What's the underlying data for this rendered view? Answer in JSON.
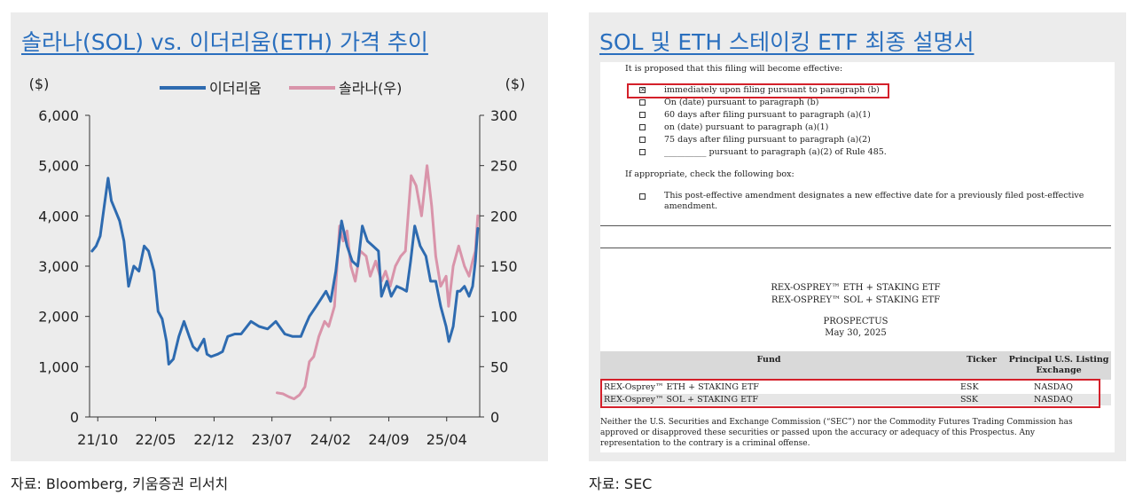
{
  "left": {
    "title": "솔라나(SOL) vs. 이더리움(ETH) 가격 추이",
    "source": "자료: Bloomberg, 키움증권 리서치"
  },
  "right": {
    "title": "SOL 및 ETH 스테이킹 ETF 최종 설명서",
    "source": "자료: SEC",
    "doc": {
      "intro": "It is proposed that this filing will become effective:",
      "options": [
        {
          "checked": true,
          "text": "immediately upon filing pursuant to paragraph (b)"
        },
        {
          "checked": false,
          "text": "On (date) pursuant to paragraph (b)"
        },
        {
          "checked": false,
          "text": "60 days after filing pursuant to paragraph (a)(1)"
        },
        {
          "checked": false,
          "text": "on (date) pursuant to paragraph (a)(1)"
        },
        {
          "checked": false,
          "text": "75 days after filing pursuant to paragraph (a)(2)"
        },
        {
          "checked": false,
          "text": "__________ pursuant to paragraph (a)(2) of Rule 485."
        }
      ],
      "appropriate": "If appropriate, check the following box:",
      "amendment_line1": "This post-effective amendment designates a new effective date for a previously filed post-effective",
      "amendment_line2": "amendment.",
      "fund_name1": "REX-OSPREY™ ETH + STAKING ETF",
      "fund_name2": "REX-OSPREY™ SOL + STAKING ETF",
      "prospectus": "PROSPECTUS",
      "date": "May 30, 2025",
      "table_headers": {
        "fund": "Fund",
        "ticker": "Ticker",
        "exchange_line1": "Principal U.S. Listing",
        "exchange_line2": "Exchange"
      },
      "table_rows": [
        {
          "fund": "REX-Osprey™ ETH + STAKING ETF",
          "ticker": "ESK",
          "exchange": "NASDAQ"
        },
        {
          "fund": "REX-Osprey™ SOL + STAKING ETF",
          "ticker": "SSK",
          "exchange": "NASDAQ"
        }
      ],
      "disclaimer_line1": "Neither the U.S. Securities and Exchange Commission (“SEC”) nor the Commodity Futures Trading Commission has",
      "disclaimer_line2": "approved or disapproved these securities or passed upon the accuracy or adequacy of this Prospectus. Any",
      "disclaimer_line3": "representation to the contrary is a criminal offense."
    }
  },
  "chart_data": {
    "type": "line",
    "title": "솔라나(SOL) vs. 이더리움(ETH) 가격 추이",
    "left_unit": "($)",
    "right_unit": "($)",
    "x_ticks": [
      "21/10",
      "22/05",
      "22/12",
      "23/07",
      "24/02",
      "24/09",
      "25/04"
    ],
    "y_left_ticks": [
      "0",
      "1,000",
      "2,000",
      "3,000",
      "4,000",
      "5,000",
      "6,000"
    ],
    "y_right_ticks": [
      "0",
      "50",
      "100",
      "150",
      "200",
      "250",
      "300"
    ],
    "ylim_left": [
      0,
      6000
    ],
    "ylim_right": [
      0,
      300
    ],
    "legend_position": "top-center",
    "colors": {
      "eth": "#2e6bb0",
      "sol": "#d994aa"
    },
    "series": [
      {
        "name": "이더리움",
        "axis": "left",
        "x": [
          "2021-09-10",
          "2021-09-25",
          "2021-10-10",
          "2021-10-25",
          "2021-11-08",
          "2021-11-20",
          "2021-12-05",
          "2021-12-20",
          "2022-01-05",
          "2022-01-22",
          "2022-02-10",
          "2022-03-01",
          "2022-03-20",
          "2022-04-05",
          "2022-04-25",
          "2022-05-10",
          "2022-05-25",
          "2022-06-10",
          "2022-06-18",
          "2022-07-05",
          "2022-07-25",
          "2022-08-13",
          "2022-09-01",
          "2022-09-15",
          "2022-10-01",
          "2022-10-25",
          "2022-11-05",
          "2022-11-20",
          "2022-12-15",
          "2023-01-01",
          "2023-01-20",
          "2023-02-15",
          "2023-03-10",
          "2023-04-15",
          "2023-05-15",
          "2023-06-15",
          "2023-07-15",
          "2023-08-17",
          "2023-09-15",
          "2023-10-15",
          "2023-10-30",
          "2023-11-15",
          "2023-12-10",
          "2024-01-15",
          "2024-02-01",
          "2024-02-20",
          "2024-03-12",
          "2024-04-01",
          "2024-04-20",
          "2024-05-10",
          "2024-05-27",
          "2024-06-15",
          "2024-07-05",
          "2024-07-25",
          "2024-08-05",
          "2024-08-25",
          "2024-09-10",
          "2024-09-30",
          "2024-10-20",
          "2024-11-05",
          "2024-11-20",
          "2024-12-05",
          "2024-12-25",
          "2025-01-15",
          "2025-02-01",
          "2025-02-20",
          "2025-03-10",
          "2025-03-30",
          "2025-04-09",
          "2025-04-25",
          "2025-05-10",
          "2025-05-20",
          "2025-06-05",
          "2025-06-22",
          "2025-07-05",
          "2025-07-15",
          "2025-07-24"
        ],
        "values": [
          3300,
          3400,
          3600,
          4200,
          4750,
          4300,
          4100,
          3900,
          3500,
          2600,
          3000,
          2900,
          3400,
          3300,
          2900,
          2100,
          1950,
          1500,
          1050,
          1150,
          1600,
          1900,
          1600,
          1400,
          1320,
          1550,
          1250,
          1200,
          1250,
          1300,
          1600,
          1650,
          1650,
          1900,
          1800,
          1750,
          1900,
          1650,
          1600,
          1600,
          1800,
          2000,
          2200,
          2500,
          2300,
          2900,
          3900,
          3400,
          3100,
          3000,
          3800,
          3500,
          3400,
          3300,
          2400,
          2700,
          2400,
          2600,
          2550,
          2500,
          3100,
          3800,
          3400,
          3200,
          2700,
          2700,
          2200,
          1800,
          1500,
          1800,
          2500,
          2500,
          2600,
          2400,
          2600,
          3100,
          3750
        ]
      },
      {
        "name": "솔라나(우)",
        "axis": "right",
        "x": [
          "2023-07-20",
          "2023-08-10",
          "2023-09-01",
          "2023-09-20",
          "2023-10-10",
          "2023-10-30",
          "2023-11-15",
          "2023-12-01",
          "2023-12-20",
          "2024-01-10",
          "2024-01-25",
          "2024-02-15",
          "2024-03-05",
          "2024-03-18",
          "2024-04-01",
          "2024-04-15",
          "2024-05-01",
          "2024-05-20",
          "2024-06-10",
          "2024-06-25",
          "2024-07-15",
          "2024-08-05",
          "2024-08-20",
          "2024-09-06",
          "2024-09-25",
          "2024-10-15",
          "2024-11-01",
          "2024-11-22",
          "2024-12-10",
          "2024-12-30",
          "2025-01-19",
          "2025-02-05",
          "2025-02-20",
          "2025-03-10",
          "2025-03-30",
          "2025-04-08",
          "2025-04-25",
          "2025-05-15",
          "2025-06-05",
          "2025-06-22",
          "2025-07-05",
          "2025-07-15",
          "2025-07-24"
        ],
        "values": [
          24,
          23,
          20,
          18,
          22,
          30,
          55,
          60,
          80,
          95,
          90,
          110,
          190,
          175,
          185,
          150,
          135,
          165,
          160,
          140,
          155,
          135,
          145,
          130,
          150,
          160,
          165,
          240,
          230,
          200,
          250,
          210,
          160,
          130,
          140,
          110,
          150,
          170,
          150,
          140,
          155,
          165,
          200
        ]
      }
    ]
  }
}
